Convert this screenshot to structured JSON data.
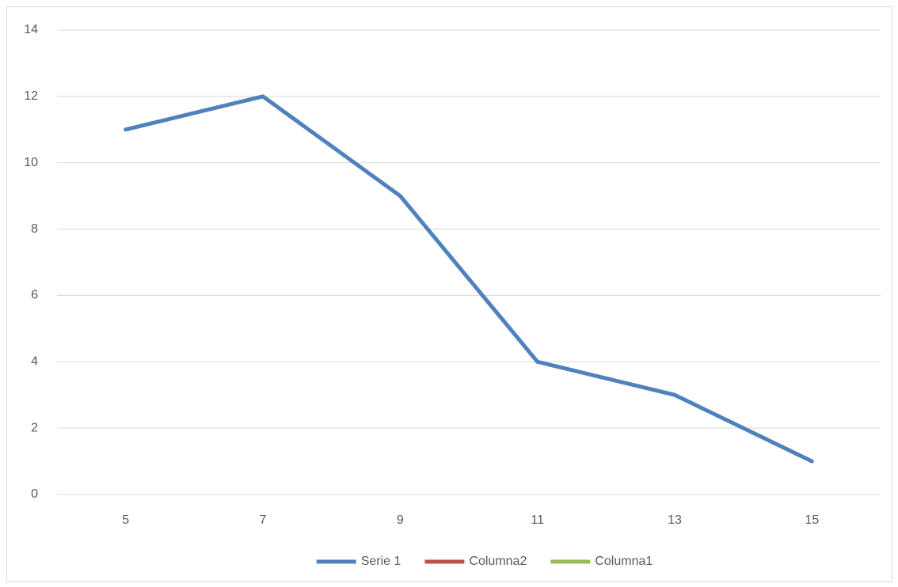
{
  "chart_data": {
    "type": "line",
    "categories": [
      "5",
      "7",
      "9",
      "11",
      "13",
      "15"
    ],
    "series": [
      {
        "name": "Serie 1",
        "color": "#4f81bd",
        "values": [
          11,
          12,
          9,
          4,
          3,
          1
        ]
      },
      {
        "name": "Columna2",
        "color": "#c0504d",
        "values": [
          null,
          null,
          null,
          null,
          null,
          null
        ]
      },
      {
        "name": "Columna1",
        "color": "#9bbb59",
        "values": [
          null,
          null,
          null,
          null,
          null,
          null
        ]
      }
    ],
    "ylim": [
      0,
      14
    ],
    "yticks": [
      0,
      2,
      4,
      6,
      8,
      10,
      12,
      14
    ],
    "grid": true,
    "legend": "bottom"
  }
}
